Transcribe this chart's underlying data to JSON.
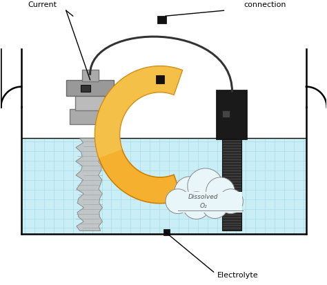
{
  "bg_color": "#ffffff",
  "electrolyte_color": "#caeef5",
  "grid_color": "#9dd8e8",
  "container_lw": 1.8,
  "container_color": "#000000",
  "anode_body_color": "#aaaaaa",
  "anode_head_color": "#999999",
  "anode_dark": "#666666",
  "cathode_body_color": "#222222",
  "cathode_head_color": "#111111",
  "wire_color": "#333333",
  "arrow_face": "#f5a020",
  "arrow_light": "#f5d060",
  "arrow_edge": "#cc7700",
  "cloud_face": "#e8f6fa",
  "cloud_edge": "#888888",
  "text_current": "Current",
  "text_connection": "connection",
  "text_electrolyte": "Electrolyte",
  "text_dissolved": "Dissolved",
  "text_o2": "O₂"
}
